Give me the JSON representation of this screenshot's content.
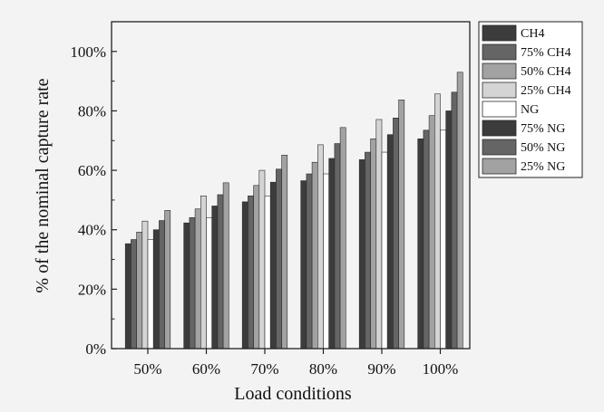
{
  "chart_data": {
    "type": "bar",
    "title": "",
    "xlabel": "Load conditions",
    "ylabel": "% of the nominal capture rate",
    "categories": [
      "50%",
      "60%",
      "70%",
      "80%",
      "90%",
      "100%"
    ],
    "ylim": [
      0,
      110
    ],
    "yticks": [
      0,
      20,
      40,
      60,
      80,
      100
    ],
    "ytick_labels": [
      "0%",
      "20%",
      "40%",
      "60%",
      "80%",
      "100%"
    ],
    "grid": false,
    "legend_position": "top-right outside",
    "series": [
      {
        "name": "CH4",
        "color": "#3c3c3c",
        "values": [
          35.3,
          42.3,
          49.4,
          56.5,
          63.6,
          70.6
        ]
      },
      {
        "name": "75% CH4",
        "color": "#656565",
        "values": [
          36.7,
          44.1,
          51.4,
          58.8,
          66.1,
          73.5
        ]
      },
      {
        "name": "50% CH4",
        "color": "#a2a2a2",
        "values": [
          39.2,
          47.0,
          54.9,
          62.7,
          70.6,
          78.4
        ]
      },
      {
        "name": "25% CH4",
        "color": "#d4d4d4",
        "values": [
          42.9,
          51.4,
          60.0,
          68.6,
          77.1,
          85.7
        ]
      },
      {
        "name": "NG",
        "color": "#ffffff",
        "values": [
          36.7,
          44.1,
          51.4,
          58.8,
          66.1,
          73.5
        ]
      },
      {
        "name": "75% NG",
        "color": "#3c3c3c",
        "values": [
          40.0,
          48.0,
          56.0,
          64.0,
          72.0,
          80.0
        ]
      },
      {
        "name": "50% NG",
        "color": "#656565",
        "values": [
          43.1,
          51.8,
          60.4,
          69.0,
          77.6,
          86.3
        ]
      },
      {
        "name": "25% NG",
        "color": "#a2a2a2",
        "values": [
          46.5,
          55.8,
          65.1,
          74.4,
          83.7,
          93.0
        ]
      }
    ]
  }
}
